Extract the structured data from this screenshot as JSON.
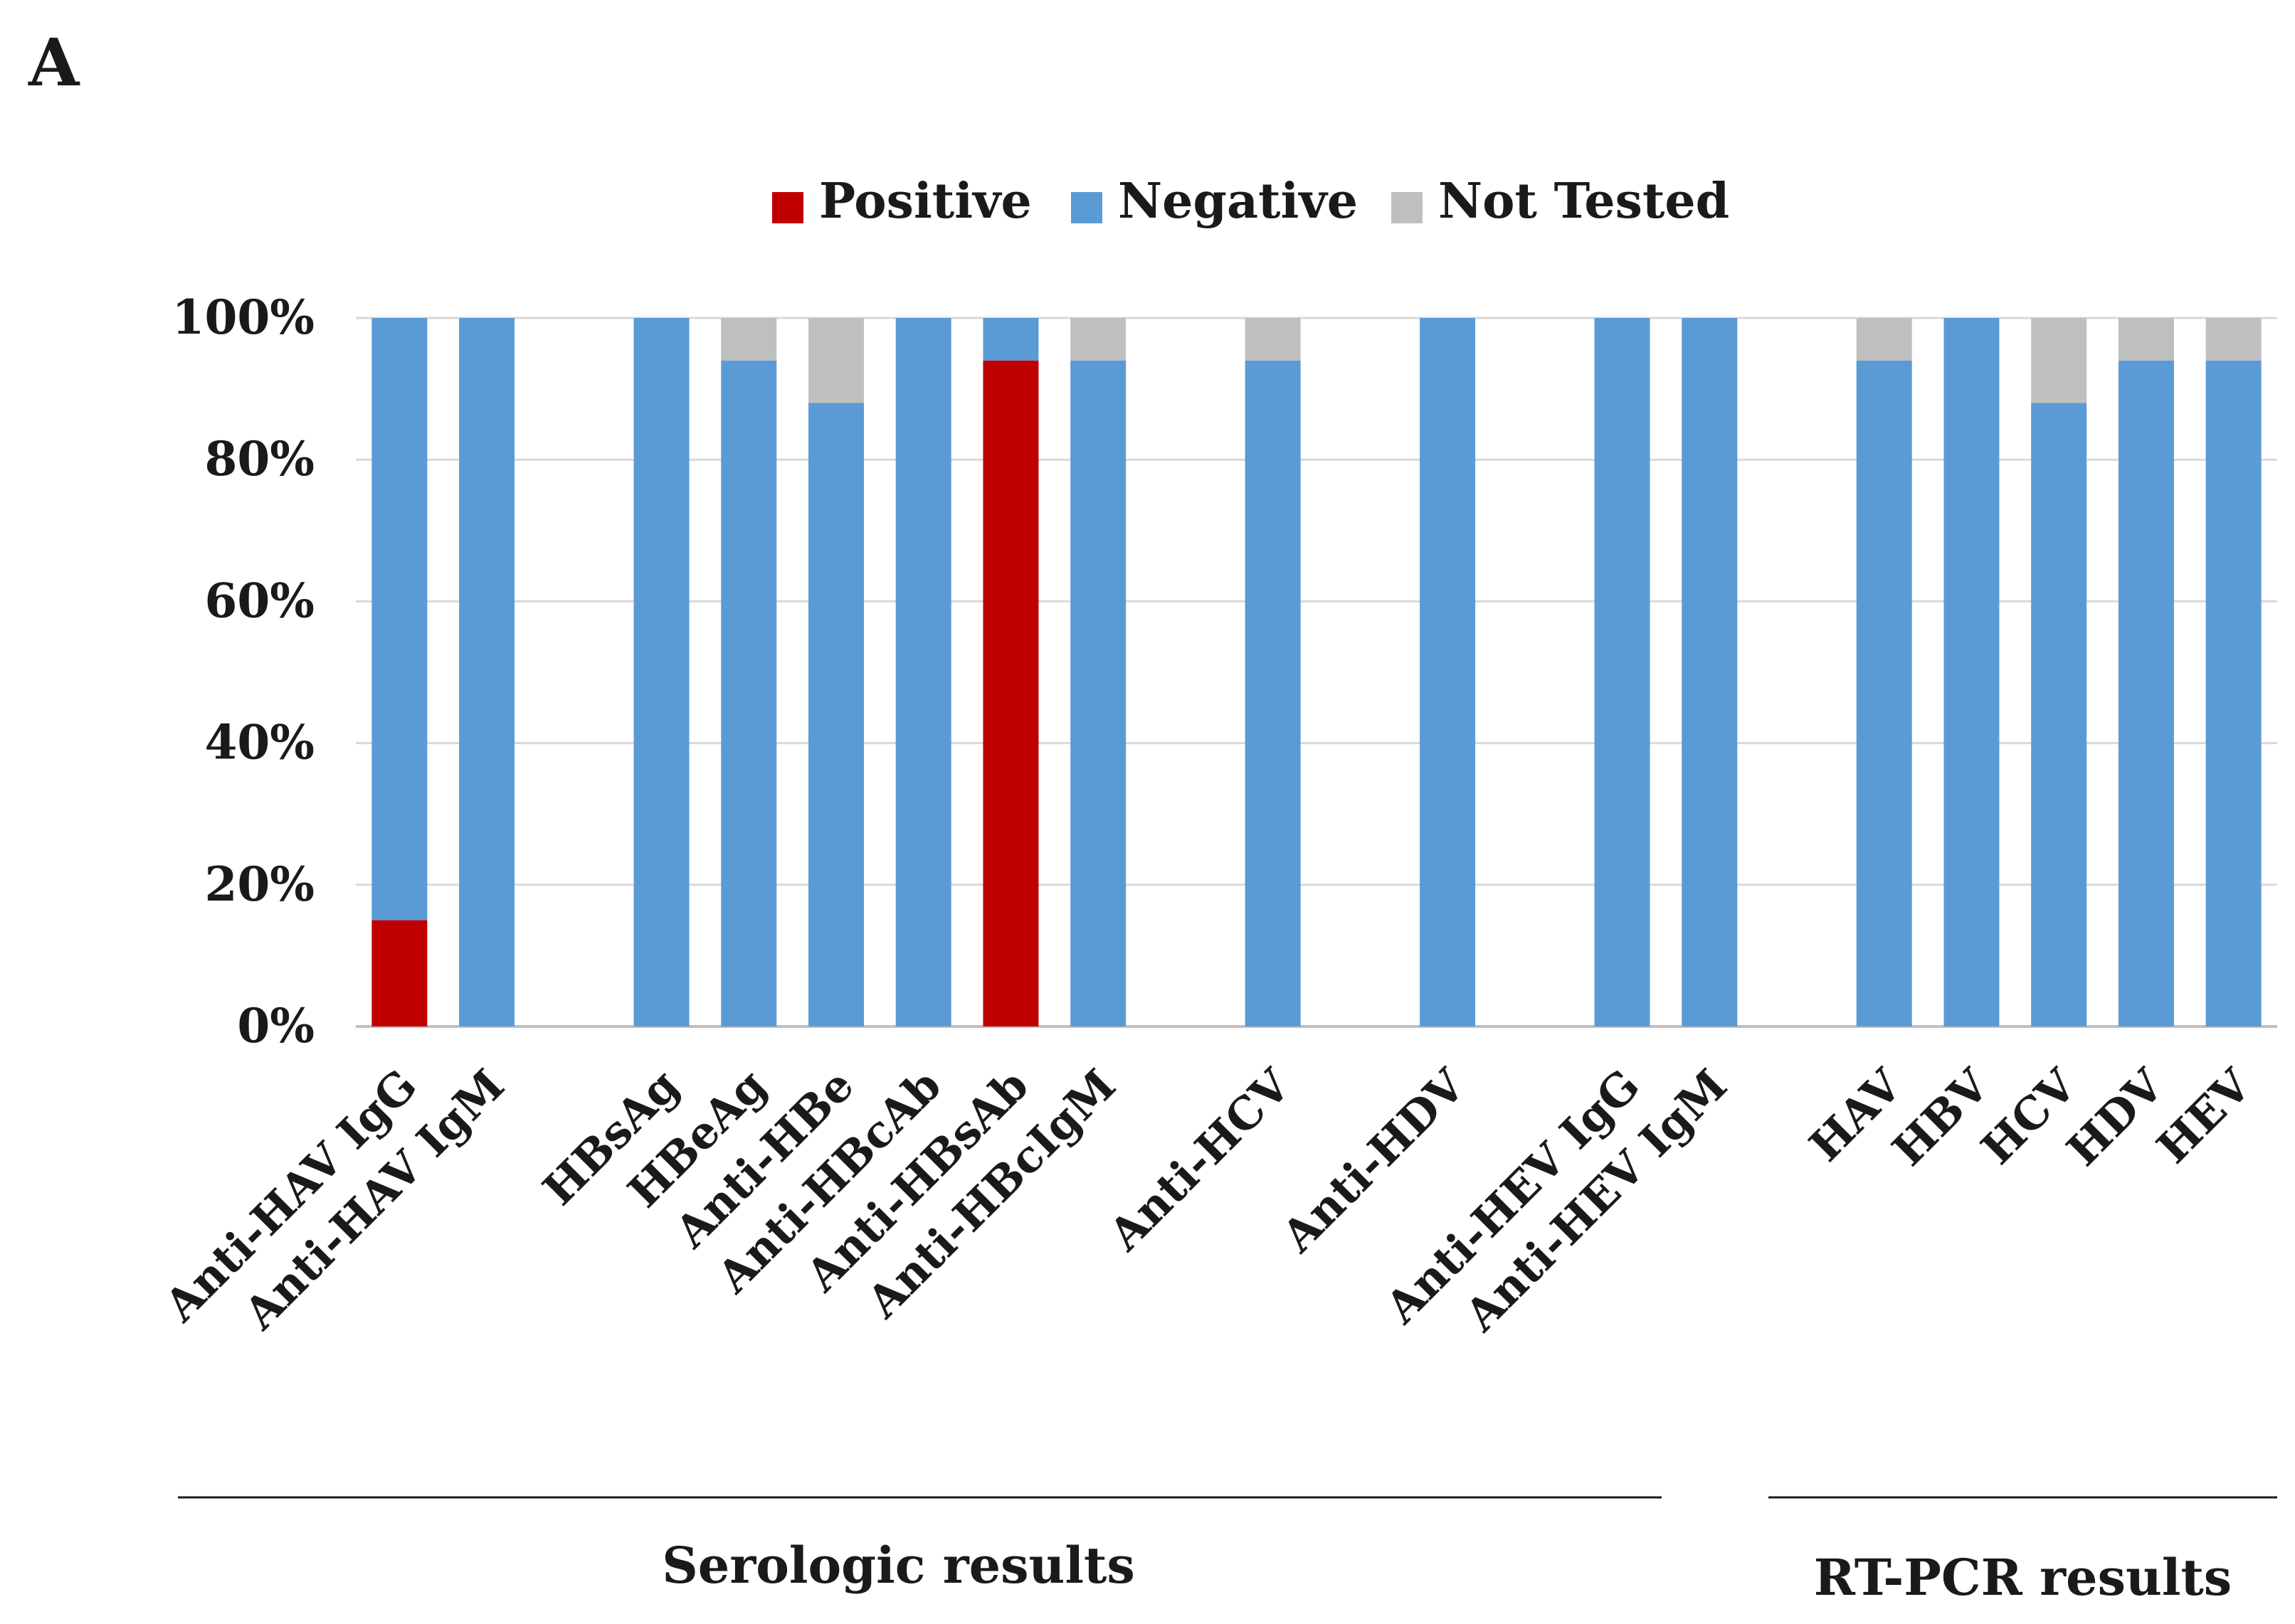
{
  "panel_label": "A",
  "chart_data": {
    "type": "bar",
    "stacked": true,
    "categories": [
      "Anti-HAV IgG",
      "Anti-HAV IgM",
      "",
      "HBsAg",
      "HBeAg",
      "Anti-HBe",
      "Anti-HBcAb",
      "Anti-HBsAb",
      "Anti-HBcIgM",
      "",
      "Anti-HCV",
      "",
      "Anti-HDV",
      "",
      "Anti-HEV IgG",
      "Anti-HEV IgM",
      "",
      "HAV",
      "HBV",
      "HCV",
      "HDV",
      "HEV"
    ],
    "series": [
      {
        "name": "Positive",
        "color": "#c00000",
        "values": [
          15,
          0,
          null,
          0,
          0,
          0,
          0,
          94,
          0,
          null,
          0,
          null,
          0,
          null,
          0,
          0,
          null,
          0,
          0,
          0,
          0,
          0
        ]
      },
      {
        "name": "Negative",
        "color": "#5b9bd5",
        "values": [
          85,
          100,
          null,
          100,
          94,
          88,
          100,
          6,
          94,
          null,
          94,
          null,
          100,
          null,
          100,
          100,
          null,
          94,
          100,
          88,
          94,
          94
        ]
      },
      {
        "name": "Not Tested",
        "color": "#bfbfbf",
        "values": [
          0,
          0,
          null,
          0,
          6,
          12,
          0,
          0,
          6,
          null,
          6,
          null,
          0,
          null,
          0,
          0,
          null,
          6,
          0,
          12,
          6,
          6
        ]
      }
    ],
    "y_ticks": [
      "0%",
      "20%",
      "40%",
      "60%",
      "80%",
      "100%"
    ],
    "ylim": [
      0,
      100
    ],
    "grid": true,
    "legend_position": "top-center",
    "groups": [
      {
        "label": "Serologic results",
        "from": "Anti-HAV IgG",
        "to": "Anti-HEV IgM"
      },
      {
        "label": "RT-PCR results",
        "from": "HAV",
        "to": "HEV"
      }
    ]
  }
}
